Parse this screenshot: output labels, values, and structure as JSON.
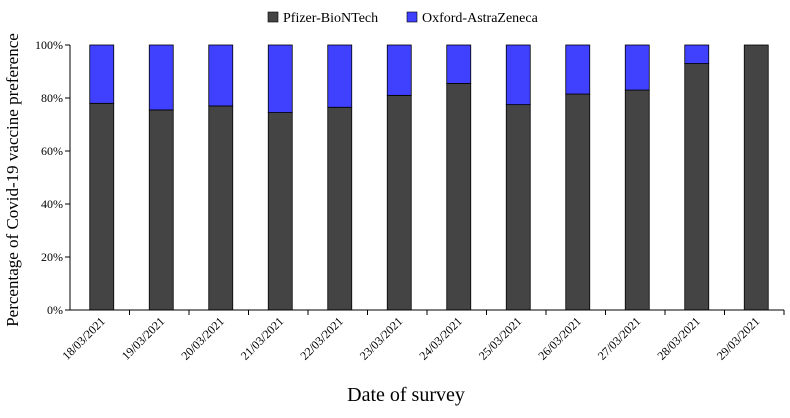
{
  "chart_data": {
    "type": "bar",
    "stacked": true,
    "categories": [
      "18/03/2021",
      "19/03/2021",
      "20/03/2021",
      "21/03/2021",
      "22/03/2021",
      "23/03/2021",
      "24/03/2021",
      "25/03/2021",
      "26/03/2021",
      "27/03/2021",
      "28/03/2021",
      "29/03/2021"
    ],
    "series": [
      {
        "name": "Pfizer-BioNTech",
        "color": "#444444",
        "values": [
          78,
          75.5,
          77,
          74.5,
          76.5,
          81,
          85.5,
          77.5,
          81.5,
          83,
          93,
          100
        ]
      },
      {
        "name": "Oxford-AstraZeneca",
        "color": "#4040ff",
        "values": [
          22,
          24.5,
          23,
          25.5,
          23.5,
          19,
          14.5,
          22.5,
          18.5,
          17,
          7,
          0
        ]
      }
    ],
    "title": "",
    "xlabel": "Date of survey",
    "ylabel": "Percentage of Covid-19 vaccine preference",
    "ylim": [
      0,
      100
    ],
    "yticks": [
      "0%",
      "20%",
      "40%",
      "60%",
      "80%",
      "100%"
    ],
    "ytick_values": [
      0,
      20,
      40,
      60,
      80,
      100
    ],
    "legend_position": "top-center",
    "grid": false
  }
}
